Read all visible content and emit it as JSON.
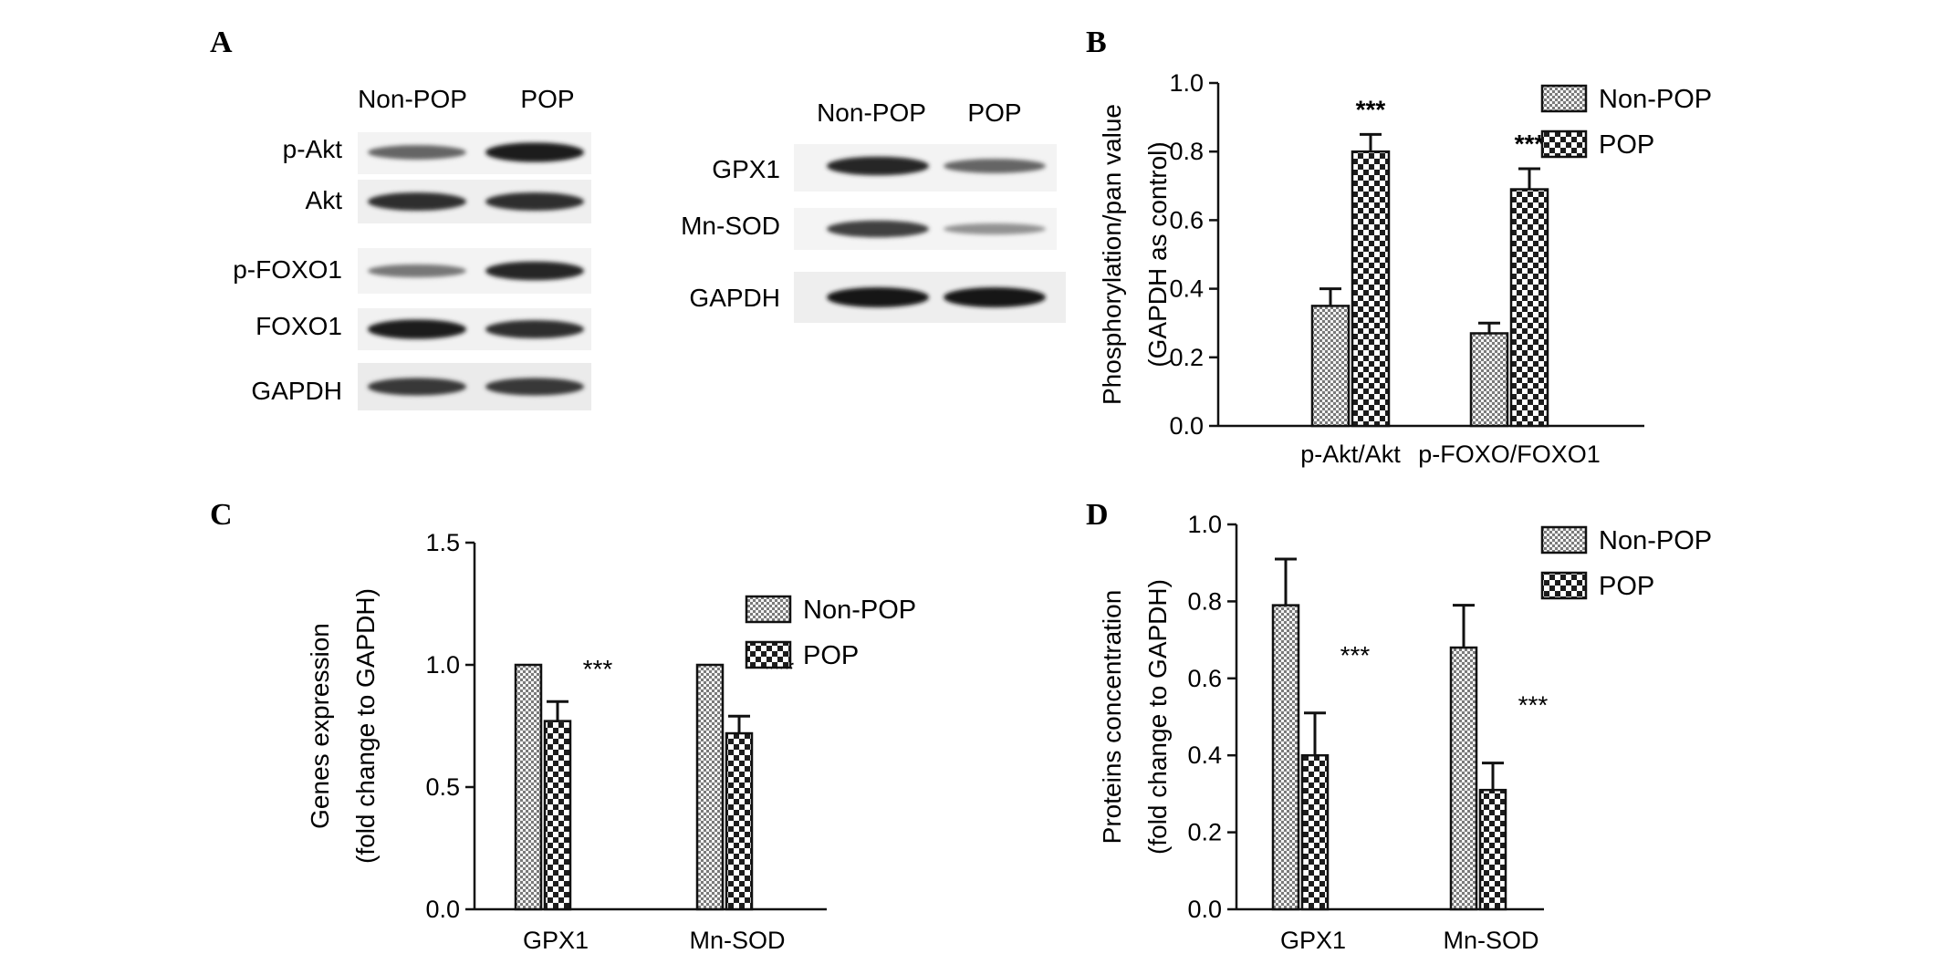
{
  "panels": {
    "A": {
      "letter": "A",
      "left_blot": {
        "columns": [
          "Non-POP",
          "POP"
        ],
        "rows": [
          {
            "label": "p-Akt",
            "intensity": [
              0.55,
              0.95
            ]
          },
          {
            "label": "Akt",
            "intensity": [
              0.85,
              0.85
            ]
          },
          {
            "label": "p-FOXO1",
            "intensity": [
              0.45,
              0.9
            ]
          },
          {
            "label": "FOXO1",
            "intensity": [
              0.95,
              0.85
            ]
          },
          {
            "label": "GAPDH",
            "intensity": [
              0.8,
              0.8
            ]
          }
        ]
      },
      "right_blot": {
        "columns": [
          "Non-POP",
          "POP"
        ],
        "rows": [
          {
            "label": "GPX1",
            "intensity": [
              0.9,
              0.55
            ]
          },
          {
            "label": "Mn-SOD",
            "intensity": [
              0.75,
              0.3
            ]
          },
          {
            "label": "GAPDH",
            "intensity": [
              1.0,
              1.0
            ]
          }
        ]
      }
    },
    "B": {
      "letter": "B"
    },
    "C": {
      "letter": "C"
    },
    "D": {
      "letter": "D"
    }
  },
  "legend": {
    "non_pop": "Non-POP",
    "pop": "POP"
  },
  "significance": "***",
  "colors": {
    "ink": "#111111",
    "non_pop_fill": "#8a8a8a",
    "pop_fill": "#222222"
  },
  "chart_data": [
    {
      "id": "B",
      "type": "bar",
      "categories": [
        "p-Akt/Akt",
        "p-FOXO/FOXO1"
      ],
      "series": [
        {
          "name": "Non-POP",
          "values": [
            0.35,
            0.27
          ],
          "errors": [
            0.05,
            0.03
          ]
        },
        {
          "name": "POP",
          "values": [
            0.8,
            0.69
          ],
          "errors": [
            0.05,
            0.06
          ]
        }
      ],
      "significance": [
        "***",
        "***"
      ],
      "ylabel_lines": [
        "Phosphorylation/pan value",
        "(GAPDH as control)"
      ],
      "yticks": [
        "0.0",
        "0.2",
        "0.4",
        "0.6",
        "0.8",
        "1.0"
      ],
      "ylim": [
        0,
        1.0
      ],
      "legend_position": "top-right"
    },
    {
      "id": "C",
      "type": "bar",
      "categories": [
        "GPX1",
        "Mn-SOD"
      ],
      "series": [
        {
          "name": "Non-POP",
          "values": [
            1.0,
            1.0
          ],
          "errors": [
            0,
            0
          ]
        },
        {
          "name": "POP",
          "values": [
            0.77,
            0.72
          ],
          "errors": [
            0.08,
            0.07
          ]
        }
      ],
      "significance": [
        "***",
        "***"
      ],
      "ylabel_lines": [
        "Genes expression",
        "(fold change to GAPDH)"
      ],
      "yticks": [
        "0.0",
        "0.5",
        "1.0",
        "1.5"
      ],
      "ylim": [
        0,
        1.5
      ],
      "legend_position": "middle-right"
    },
    {
      "id": "D",
      "type": "bar",
      "categories": [
        "GPX1",
        "Mn-SOD"
      ],
      "series": [
        {
          "name": "Non-POP",
          "values": [
            0.79,
            0.68
          ],
          "errors": [
            0.12,
            0.11
          ]
        },
        {
          "name": "POP",
          "values": [
            0.4,
            0.31
          ],
          "errors": [
            0.11,
            0.07
          ]
        }
      ],
      "significance": [
        "***",
        "***"
      ],
      "ylabel_lines": [
        "Proteins concentration",
        "(fold change to GAPDH)"
      ],
      "yticks": [
        "0.0",
        "0.2",
        "0.4",
        "0.6",
        "0.8",
        "1.0"
      ],
      "ylim": [
        0,
        1.0
      ],
      "legend_position": "top-right"
    }
  ]
}
